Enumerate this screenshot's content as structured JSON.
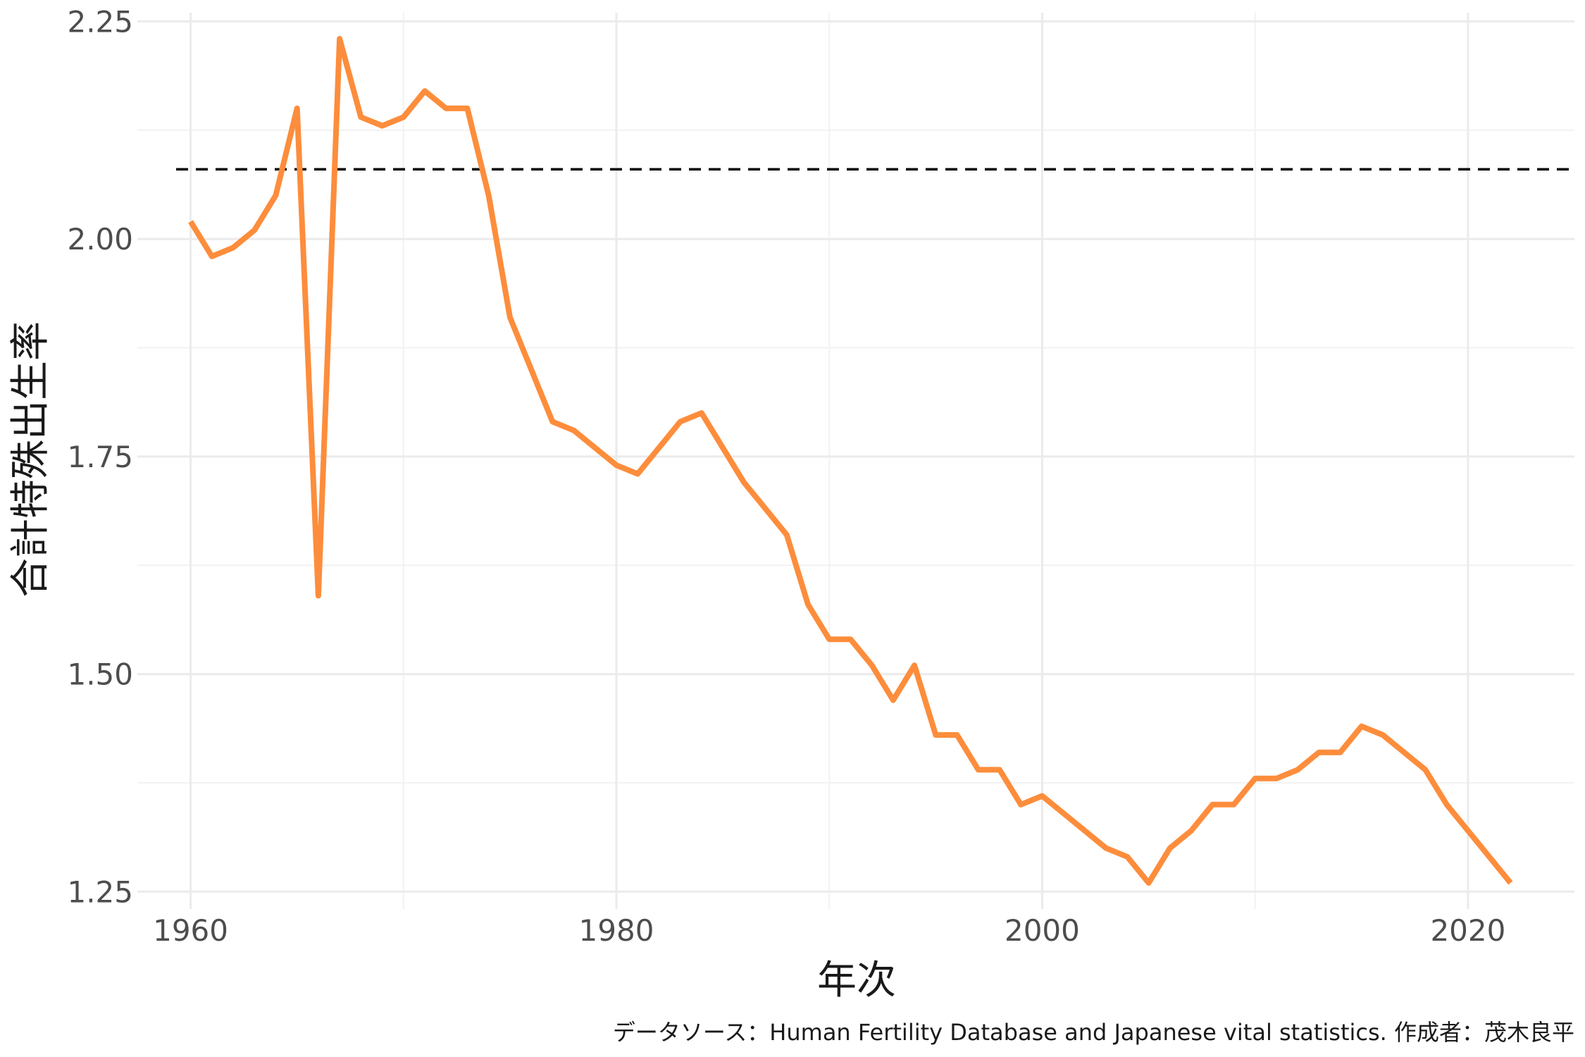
{
  "chart_data": {
    "type": "line",
    "xlabel": "年次",
    "ylabel": "合計特殊出生率",
    "caption": "データソース：Human Fertility Database and Japanese vital statistics. 作成者：茂木良平",
    "xlim": [
      1957.5,
      2025
    ],
    "ylim": [
      1.23,
      2.26
    ],
    "x_ticks": [
      1960,
      1980,
      2000,
      2020
    ],
    "x_tick_labels": [
      "1960",
      "1980",
      "2000",
      "2020"
    ],
    "y_ticks": [
      1.25,
      1.5,
      1.75,
      2.0,
      2.25
    ],
    "y_tick_labels": [
      "1.25",
      "1.50",
      "1.75",
      "2.00",
      "2.25"
    ],
    "grid": true,
    "reference_line": {
      "y": 2.08,
      "style": "dashed",
      "color": "#000000"
    },
    "series": [
      {
        "color": "#fd8d3c",
        "x": [
          1960,
          1961,
          1962,
          1963,
          1964,
          1965,
          1966,
          1967,
          1968,
          1969,
          1970,
          1971,
          1972,
          1973,
          1974,
          1975,
          1976,
          1977,
          1978,
          1979,
          1980,
          1981,
          1982,
          1983,
          1984,
          1985,
          1986,
          1987,
          1988,
          1989,
          1990,
          1991,
          1992,
          1993,
          1994,
          1995,
          1996,
          1997,
          1998,
          1999,
          2000,
          2001,
          2002,
          2003,
          2004,
          2005,
          2006,
          2007,
          2008,
          2009,
          2010,
          2011,
          2012,
          2013,
          2014,
          2015,
          2016,
          2017,
          2018,
          2019,
          2020,
          2021,
          2022
        ],
        "values": [
          2.02,
          1.98,
          1.99,
          2.01,
          2.05,
          2.15,
          1.59,
          2.23,
          2.14,
          2.13,
          2.14,
          2.17,
          2.15,
          2.15,
          2.05,
          1.91,
          1.85,
          1.79,
          1.78,
          1.76,
          1.74,
          1.73,
          1.76,
          1.79,
          1.8,
          1.76,
          1.72,
          1.69,
          1.66,
          1.58,
          1.54,
          1.54,
          1.51,
          1.47,
          1.51,
          1.43,
          1.43,
          1.39,
          1.39,
          1.35,
          1.36,
          1.34,
          1.32,
          1.3,
          1.29,
          1.26,
          1.3,
          1.32,
          1.35,
          1.35,
          1.38,
          1.38,
          1.39,
          1.41,
          1.41,
          1.44,
          1.43,
          1.41,
          1.39,
          1.35,
          1.32,
          1.29,
          1.26
        ]
      }
    ]
  }
}
